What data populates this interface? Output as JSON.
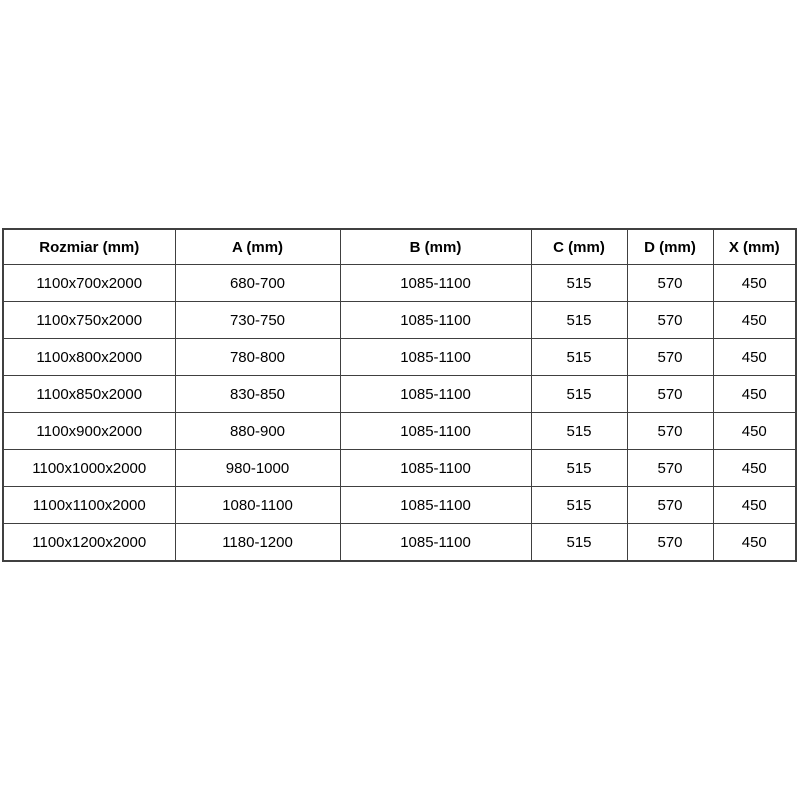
{
  "page": {
    "background_color": "#ffffff",
    "text_color": "#000000"
  },
  "table": {
    "description": "shower-enclosure-size-specification-table",
    "border_color": "#404040",
    "headers": [
      "Rozmiar (mm)",
      "A (mm)",
      "B (mm)",
      "C (mm)",
      "D (mm)",
      "X (mm)"
    ],
    "rows": [
      [
        "1100x700x2000",
        "680-700",
        "1085-1100",
        "515",
        "570",
        "450"
      ],
      [
        "1100x750x2000",
        "730-750",
        "1085-1100",
        "515",
        "570",
        "450"
      ],
      [
        "1100x800x2000",
        "780-800",
        "1085-1100",
        "515",
        "570",
        "450"
      ],
      [
        "1100x850x2000",
        "830-850",
        "1085-1100",
        "515",
        "570",
        "450"
      ],
      [
        "1100x900x2000",
        "880-900",
        "1085-1100",
        "515",
        "570",
        "450"
      ],
      [
        "1100x1000x2000",
        "980-1000",
        "1085-1100",
        "515",
        "570",
        "450"
      ],
      [
        "1100x1100x2000",
        "1080-1100",
        "1085-1100",
        "515",
        "570",
        "450"
      ],
      [
        "1100x1200x2000",
        "1180-1200",
        "1085-1100",
        "515",
        "570",
        "450"
      ]
    ]
  }
}
